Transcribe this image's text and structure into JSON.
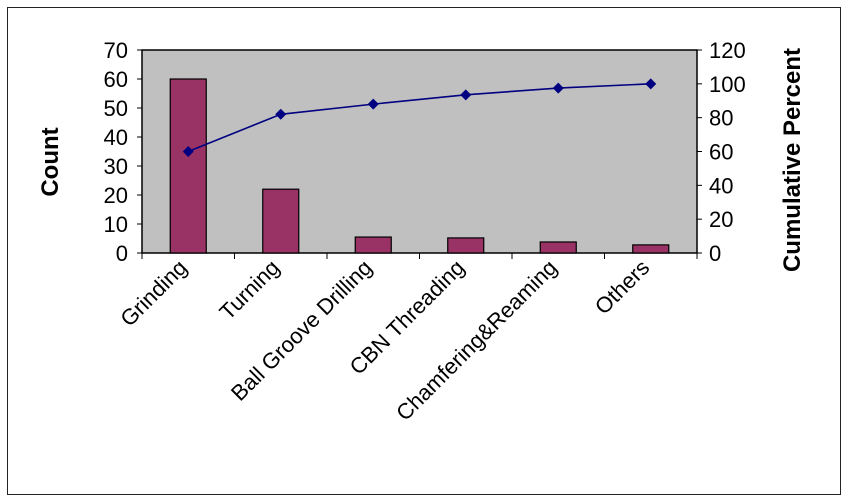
{
  "chart_data": {
    "type": "bar",
    "categories": [
      "Grinding",
      "Turning",
      "Ball Groove Drilling",
      "CBN Threading",
      "Chamfering&Reaming",
      "Others"
    ],
    "series": [
      {
        "name": "Count",
        "type": "bar",
        "axis": "left",
        "values": [
          60,
          22,
          5.5,
          5.2,
          3.8,
          2.8
        ]
      },
      {
        "name": "Cumulative Percent",
        "type": "line",
        "axis": "right",
        "values": [
          60,
          82,
          88,
          93.5,
          97.5,
          100
        ]
      }
    ],
    "xlabel": "",
    "ylabel": "Count",
    "y2label": "Cumulative Percent",
    "ylim": [
      0,
      70
    ],
    "y2lim": [
      0,
      120
    ],
    "yticks": [
      "0",
      "10",
      "20",
      "30",
      "40",
      "50",
      "60",
      "70"
    ],
    "y2ticks": [
      "0",
      "20",
      "40",
      "60",
      "80",
      "100",
      "120"
    ],
    "grid": false,
    "colors": {
      "plot_bg": "#c0c0c0",
      "bar": "#993366",
      "line": "#000080",
      "border": "#000000"
    }
  }
}
